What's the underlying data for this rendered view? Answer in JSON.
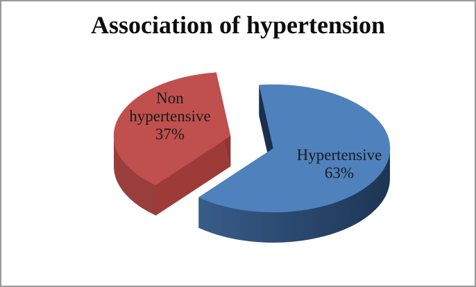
{
  "page": {
    "background": "#FFFFFF",
    "border_color": "#999999"
  },
  "chart_data": {
    "type": "pie",
    "style": "3d-exploded",
    "title": "Association of hypertension",
    "title_color": "#0d0d0d",
    "legend_position": "none",
    "unit": "%",
    "categories": [
      "Hypertensive",
      "Non hypertensive"
    ],
    "values": [
      63,
      37
    ],
    "data_label_color": "#1a1a1a",
    "slices": [
      {
        "name": "Hypertensive",
        "pct": 63,
        "pct_label": "63%",
        "name_lines": [
          "Hypertensive"
        ],
        "exploded": false,
        "color": "#4F81BD",
        "side_color": "#3E6595",
        "side_color_dark": "#1D3554",
        "cut_color_start": "#1B2F4D",
        "cut_color_end": "#26435F"
      },
      {
        "name": "Non hypertensive",
        "pct": 37,
        "pct_label": "37%",
        "name_lines": [
          "Non",
          "hypertensive"
        ],
        "exploded": true,
        "color": "#C0504D",
        "side_color": "#9A3E3C",
        "side_color_dark": "#7E2C2A",
        "cut_color_start": "#9E3B39",
        "cut_color_end": "#8F3634"
      }
    ]
  }
}
